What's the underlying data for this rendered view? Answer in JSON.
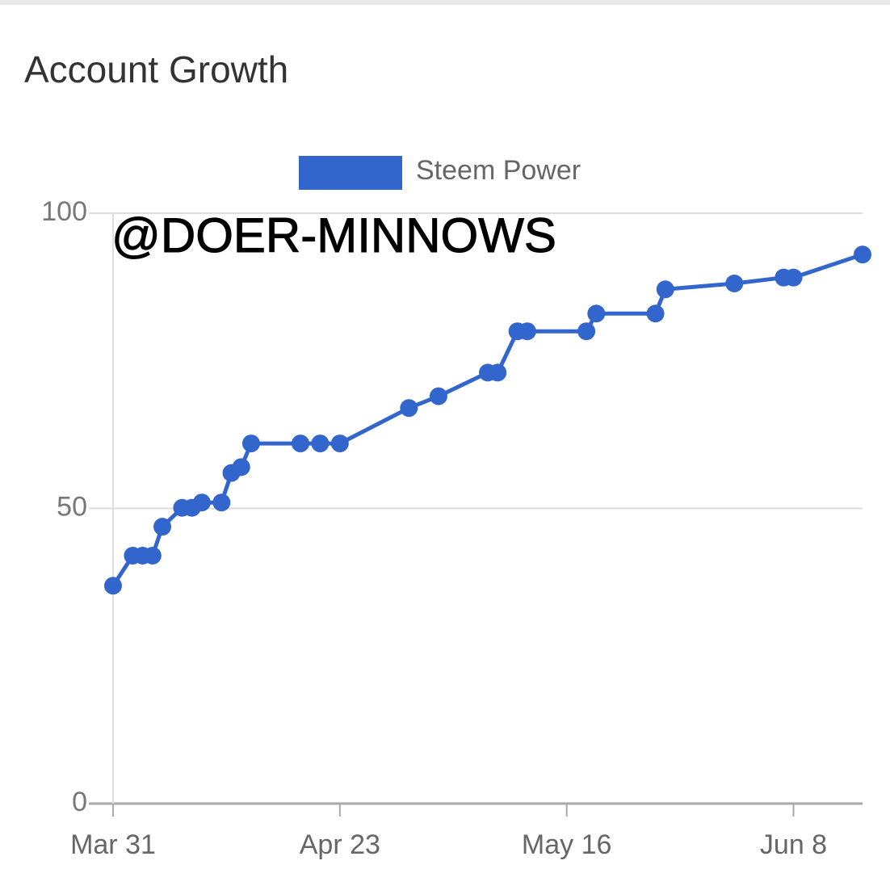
{
  "chart_data": {
    "type": "line",
    "title": "Account Growth",
    "annotation": "@DOER-MINNOWS",
    "x": [
      0,
      2,
      3,
      4,
      5,
      7,
      8,
      9,
      11,
      12,
      13,
      14,
      19,
      21,
      23,
      30,
      33,
      38,
      39,
      41,
      42,
      48,
      49,
      55,
      56,
      63,
      68,
      69,
      76
    ],
    "series": [
      {
        "name": "Steem Power",
        "color": "#3366cc",
        "values": [
          36.9,
          42,
          42,
          42,
          46.9,
          50.1,
          50.1,
          51,
          51,
          56,
          57,
          61,
          61,
          61,
          61,
          67,
          69,
          73,
          73,
          80,
          80,
          80,
          83,
          83,
          87.1,
          88.1,
          89.1,
          89.1,
          93
        ]
      }
    ],
    "xlim": [
      0,
      76
    ],
    "xticks": [
      {
        "value": 0,
        "label": "Mar 31"
      },
      {
        "value": 23,
        "label": "Apr 23"
      },
      {
        "value": 46,
        "label": "May 16"
      },
      {
        "value": 69,
        "label": "Jun 8"
      }
    ],
    "ylim": [
      0,
      100
    ],
    "yticks": [
      0,
      50,
      100
    ],
    "grid": true,
    "legend": "top"
  }
}
